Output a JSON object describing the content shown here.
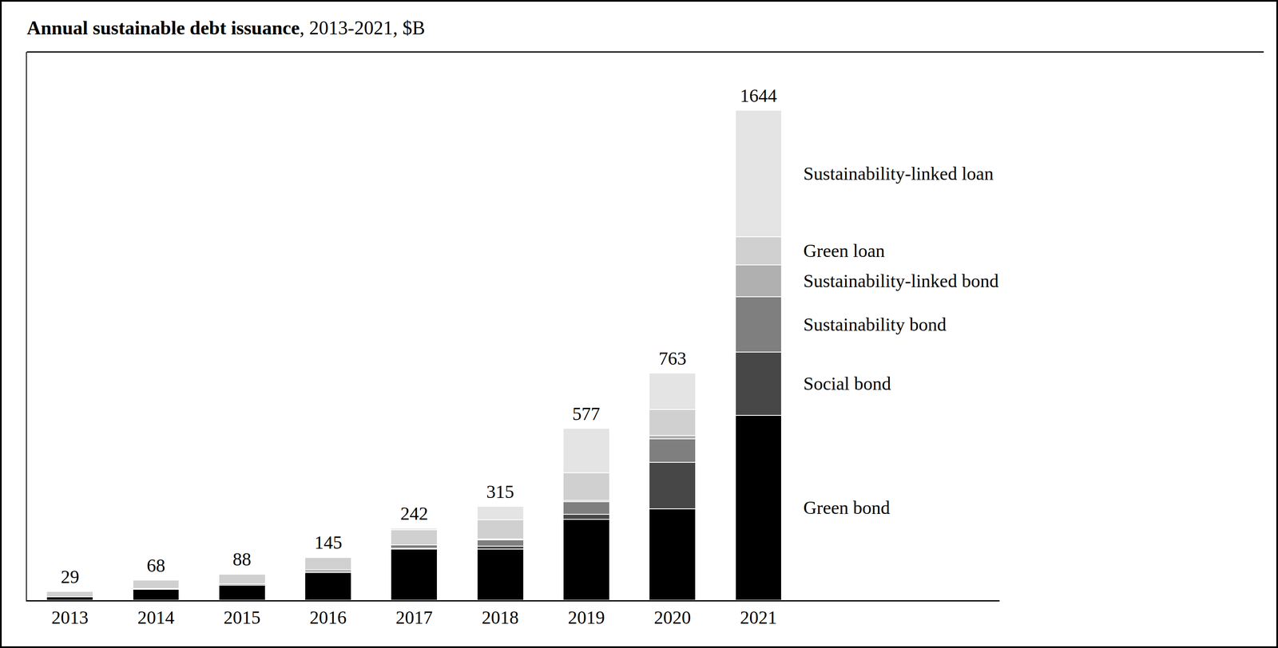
{
  "chart_data": {
    "type": "bar",
    "title": "Annual sustainable debt issuance, 2013-2021, $B",
    "categories": [
      "2013",
      "2014",
      "2015",
      "2016",
      "2017",
      "2018",
      "2019",
      "2020",
      "2021"
    ],
    "stacked": true,
    "tick_labels": "x",
    "grid": false,
    "ylim": [
      0,
      1840
    ],
    "totals": [
      29,
      68,
      88,
      145,
      242,
      315,
      577,
      763,
      1644
    ],
    "series": [
      {
        "name": "Green bond",
        "color": "#000000",
        "values": [
          11,
          37,
          50,
          93,
          171,
          171,
          271,
          306,
          620
        ]
      },
      {
        "name": "Social bond",
        "color": "#474747",
        "values": [
          0,
          1,
          1,
          4,
          4,
          10,
          17,
          157,
          213
        ]
      },
      {
        "name": "Sustainability bond",
        "color": "#7f7f7f",
        "values": [
          0,
          1,
          4,
          6,
          10,
          21,
          42,
          79,
          185
        ]
      },
      {
        "name": "Sustainability-linked bond",
        "color": "#b0b0b0",
        "values": [
          0,
          0,
          0,
          0,
          0,
          3,
          5,
          11,
          107
        ]
      },
      {
        "name": "Green loan",
        "color": "#d0d0d0",
        "values": [
          18,
          29,
          32,
          40,
          52,
          65,
          92,
          87,
          95
        ]
      },
      {
        "name": "Sustainability-linked loan",
        "color": "#e4e4e4",
        "values": [
          0,
          0,
          1,
          2,
          5,
          45,
          150,
          123,
          424
        ]
      }
    ]
  }
}
